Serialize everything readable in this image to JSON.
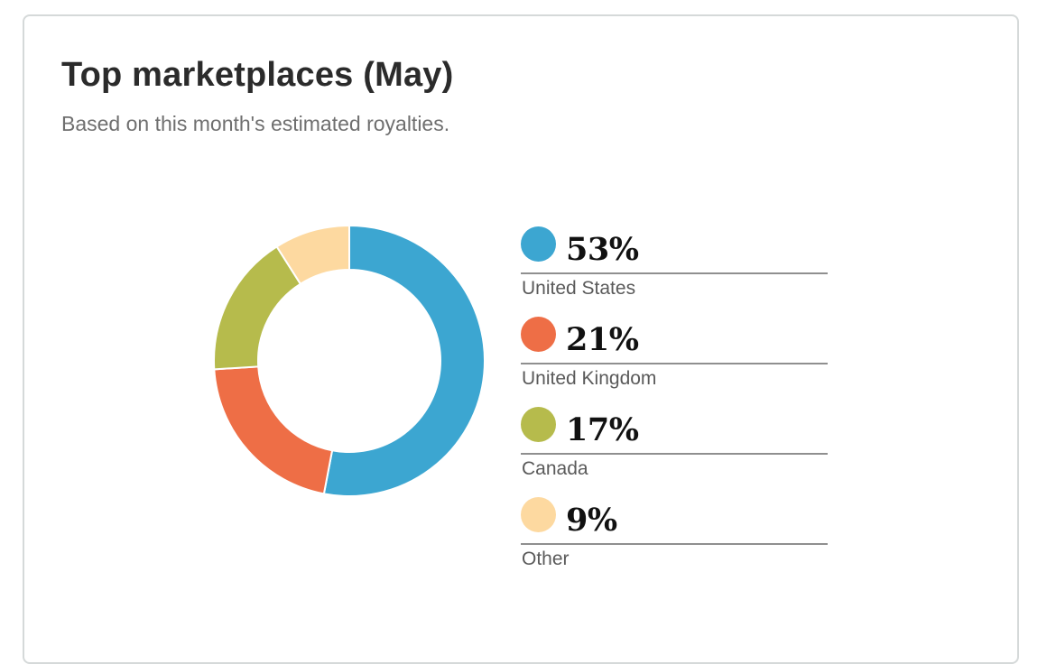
{
  "card": {
    "title": "Top marketplaces (May)",
    "subtitle": "Based on this month's estimated royalties."
  },
  "legend": [
    {
      "percent_label": "53%",
      "label": "United States",
      "color": "#3ca6d1"
    },
    {
      "percent_label": "21%",
      "label": "United Kingdom",
      "color": "#ee6e46"
    },
    {
      "percent_label": "17%",
      "label": "Canada",
      "color": "#b6bb4c"
    },
    {
      "percent_label": "9%",
      "label": "Other",
      "color": "#fdd9a0"
    }
  ],
  "chart_data": {
    "type": "pie",
    "variant": "donut",
    "title": "Top marketplaces (May)",
    "subtitle": "Based on this month's estimated royalties.",
    "categories": [
      "United States",
      "United Kingdom",
      "Canada",
      "Other"
    ],
    "values": [
      53,
      21,
      17,
      9
    ],
    "unit": "%",
    "colors": [
      "#3ca6d1",
      "#ee6e46",
      "#b6bb4c",
      "#fdd9a0"
    ],
    "legend_placement": "right"
  }
}
